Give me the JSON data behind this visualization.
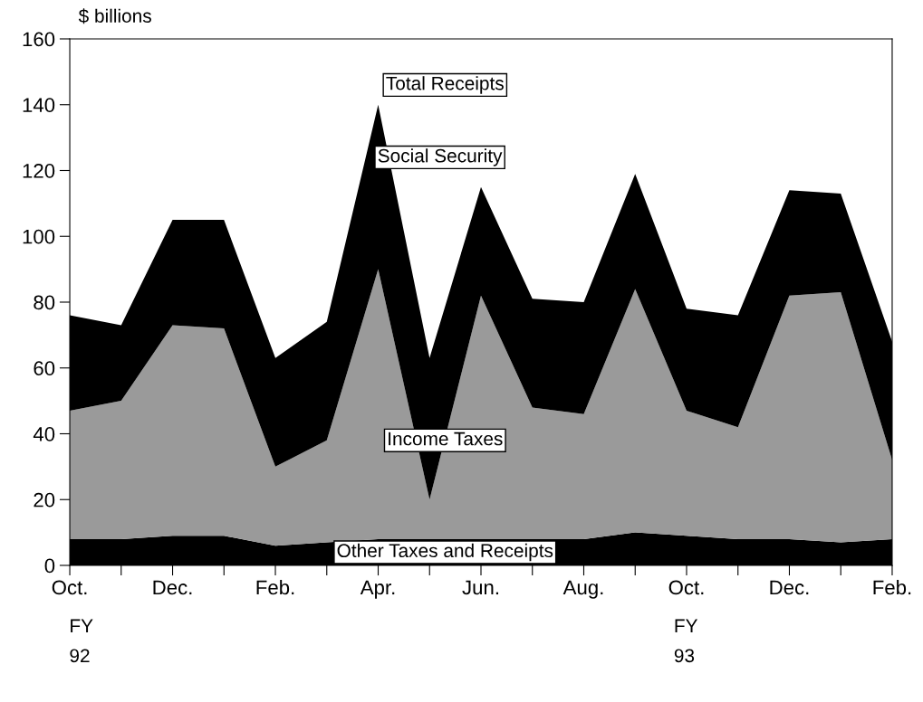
{
  "chart_data": {
    "type": "area",
    "stacked": true,
    "ylabel": "$ billions",
    "categories": [
      "Oct.",
      null,
      "Dec.",
      null,
      "Feb.",
      null,
      "Apr.",
      null,
      "Jun.",
      null,
      "Aug.",
      null,
      "Oct.",
      null,
      "Dec.",
      null,
      "Feb."
    ],
    "series": [
      {
        "name": "Other Taxes and Receipts",
        "color": "#000000",
        "values": [
          8,
          8,
          9,
          9,
          6,
          7,
          8,
          8,
          8,
          8,
          8,
          10,
          9,
          8,
          8,
          7,
          8
        ]
      },
      {
        "name": "Income Taxes",
        "color": "#9a9a9a",
        "values": [
          39,
          42,
          64,
          63,
          24,
          31,
          82,
          12,
          74,
          40,
          38,
          74,
          38,
          34,
          74,
          76,
          24
        ]
      },
      {
        "name": "Social Security",
        "color": "#000000",
        "values": [
          29,
          23,
          32,
          33,
          33,
          36,
          50,
          43,
          33,
          33,
          34,
          35,
          31,
          34,
          32,
          30,
          36
        ]
      }
    ],
    "annotations": [
      "Total Receipts",
      "FY\n92",
      "FY\n93"
    ],
    "ylim": [
      0,
      160
    ],
    "yticks": [
      0,
      20,
      40,
      60,
      80,
      100,
      120,
      140,
      160
    ],
    "grid": false,
    "legend": false
  }
}
